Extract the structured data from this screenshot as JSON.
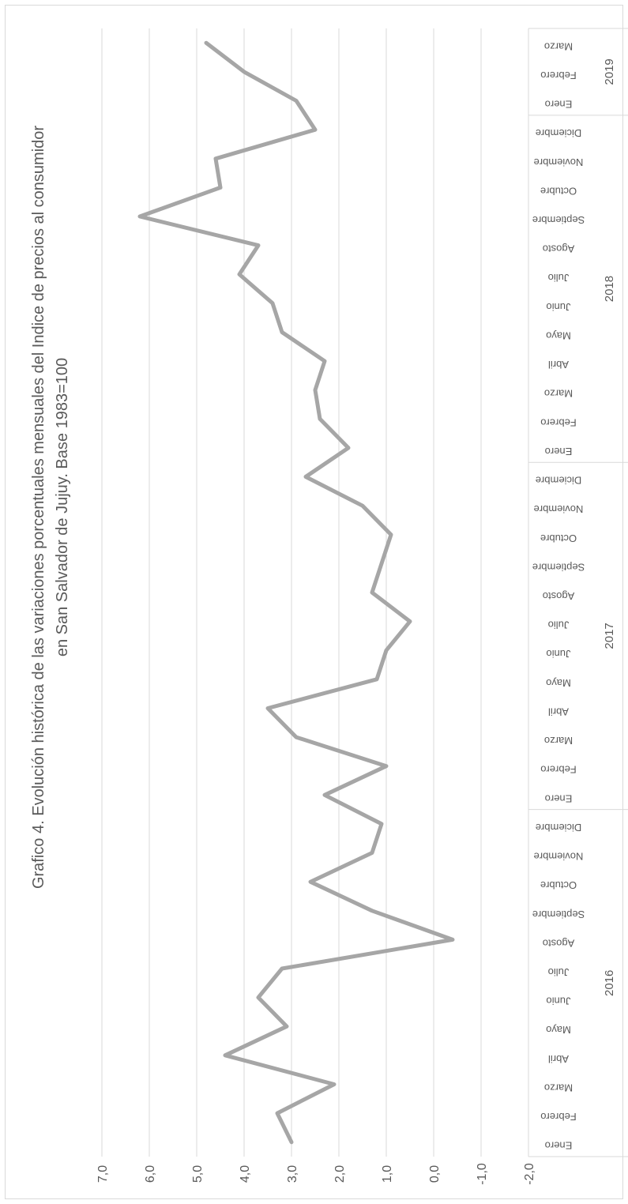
{
  "chart_data": {
    "type": "line",
    "title": "Grafico 4. Evolución histórica de las variaciones porcentuales mensuales del Indice de precios al consumidor",
    "subtitle": "en San Salvador de Jujuy. Base 1983=100",
    "xlabel": "",
    "ylabel": "",
    "ylim": [
      -2,
      7
    ],
    "y_ticks": [
      "7,0",
      "6,0",
      "5,0",
      "4,0",
      "3,0",
      "2,0",
      "1,0",
      "0,0",
      "-1,0",
      "-2,0"
    ],
    "grid": true,
    "legend": "none",
    "line_color": "#a6a6a6",
    "grid_color": "#d9d9d9",
    "categories": [
      "Enero",
      "Febrero",
      "Marzo",
      "Abril",
      "Mayo",
      "Junio",
      "Julio",
      "Agosto",
      "Septiembre",
      "Octubre",
      "Noviembre",
      "Diciembre",
      "Enero",
      "Febrero",
      "Marzo",
      "Abril",
      "Mayo",
      "Junio",
      "Julio",
      "Agosto",
      "Septiembre",
      "Octubre",
      "Noviembre",
      "Diciembre",
      "Enero",
      "Febrero",
      "Marzo",
      "Abril",
      "Mayo",
      "Junio",
      "Julio",
      "Agosto",
      "Septiembre",
      "Octubre",
      "Noviembre",
      "Diciembre",
      "Enero",
      "Febrero",
      "Marzo"
    ],
    "year_groups": [
      {
        "label": "2016",
        "count": 12
      },
      {
        "label": "2017",
        "count": 12
      },
      {
        "label": "2018",
        "count": 12
      },
      {
        "label": "2019",
        "count": 3
      }
    ],
    "values": [
      3.0,
      3.3,
      2.1,
      4.4,
      3.1,
      3.7,
      3.2,
      -0.4,
      1.3,
      2.6,
      1.3,
      1.1,
      2.3,
      1.0,
      2.9,
      3.5,
      1.2,
      1.0,
      0.5,
      1.3,
      1.1,
      0.9,
      1.5,
      2.7,
      1.8,
      2.4,
      2.5,
      2.3,
      3.2,
      3.4,
      4.1,
      3.7,
      6.2,
      4.5,
      4.6,
      2.5,
      2.9,
      4.0,
      4.8
    ]
  }
}
